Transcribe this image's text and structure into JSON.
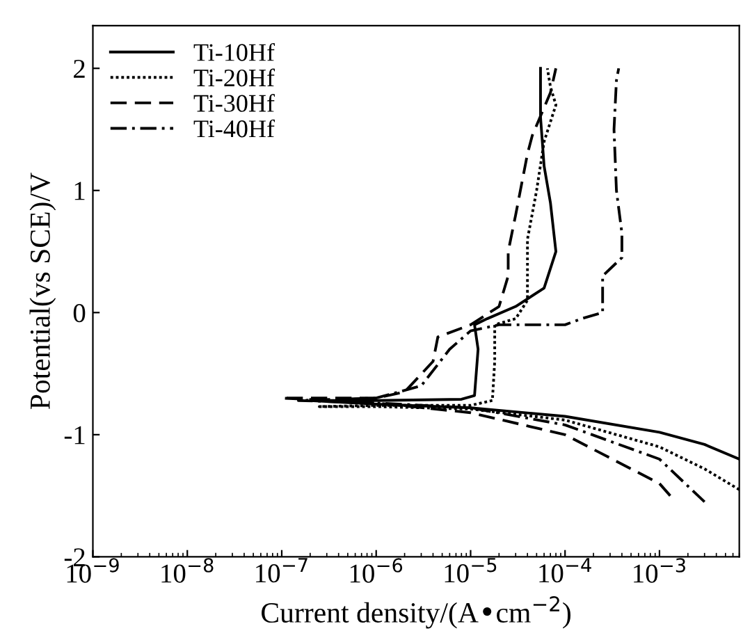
{
  "chart_data": {
    "type": "line",
    "xlabel": "Current density/(A•cm$^{−2}$)",
    "ylabel": "Potential(vs SCE)/V",
    "log": "x",
    "xlim": [
      1e-09,
      0.007
    ],
    "ylim": [
      -2,
      2.35
    ],
    "xticks": [
      {
        "value": 1e-09,
        "label": "10$^{−9}$"
      },
      {
        "value": 1e-08,
        "label": "10$^{−8}$"
      },
      {
        "value": 1e-07,
        "label": "10$^{−7}$"
      },
      {
        "value": 1e-06,
        "label": "10$^{−6}$"
      },
      {
        "value": 1e-05,
        "label": "10$^{−5}$"
      },
      {
        "value": 0.0001,
        "label": "10$^{−4}$"
      },
      {
        "value": 0.001,
        "label": "10$^{−3}$"
      }
    ],
    "yticks": [
      -2,
      -1,
      0,
      1,
      2
    ],
    "grid": false,
    "legend": "top left",
    "marker": "none",
    "series": [
      {
        "name": "Ti-10Hf",
        "color": "#000000",
        "line_style": "solid",
        "x": [
          0.007,
          0.003,
          0.001,
          0.0001,
          1e-05,
          1e-06,
          2e-07,
          1e-06,
          8e-06,
          1.1e-05,
          1.2e-05,
          1.1e-05,
          1.5e-05,
          3e-05,
          6e-05,
          8e-05,
          7e-05,
          6e-05,
          5.5e-05,
          5.5e-05
        ],
        "values": [
          -1.2,
          -1.08,
          -0.98,
          -0.85,
          -0.78,
          -0.75,
          -0.72,
          -0.72,
          -0.71,
          -0.68,
          -0.3,
          -0.1,
          -0.05,
          0.05,
          0.2,
          0.5,
          0.9,
          1.2,
          1.6,
          2.0
        ]
      },
      {
        "name": "Ti-20Hf",
        "color": "#000000",
        "line_style": "dotted",
        "x": [
          0.007,
          0.003,
          0.001,
          0.0001,
          1e-05,
          1e-06,
          2.5e-07,
          1e-06,
          1e-05,
          1.7e-05,
          1.8e-05,
          1.8e-05,
          3e-05,
          4e-05,
          4e-05,
          4e-05,
          5e-05,
          6e-05,
          8e-05,
          7e-05,
          6.5e-05
        ],
        "values": [
          -1.45,
          -1.28,
          -1.1,
          -0.88,
          -0.79,
          -0.77,
          -0.77,
          -0.76,
          -0.76,
          -0.72,
          -0.4,
          -0.1,
          -0.05,
          0.1,
          0.3,
          0.6,
          1.0,
          1.4,
          1.7,
          1.85,
          2.0
        ]
      },
      {
        "name": "Ti-30Hf",
        "color": "#000000",
        "line_style": "dashed",
        "x": [
          0.0013,
          0.001,
          0.0001,
          1e-05,
          1e-06,
          1e-07,
          1e-06,
          2e-06,
          4e-06,
          4.5e-06,
          1e-05,
          2e-05,
          2.5e-05,
          2.5e-05,
          3e-05,
          4e-05,
          4.5e-05,
          7e-05,
          8e-05
        ],
        "values": [
          -1.5,
          -1.4,
          -1.0,
          -0.82,
          -0.74,
          -0.7,
          -0.7,
          -0.65,
          -0.4,
          -0.2,
          -0.1,
          0.05,
          0.3,
          0.5,
          0.8,
          1.3,
          1.45,
          1.8,
          2.0
        ]
      },
      {
        "name": "Ti-40Hf",
        "color": "#000000",
        "line_style": "dashdot",
        "x": [
          0.003,
          0.001,
          0.0001,
          1e-05,
          1e-06,
          1.5e-07,
          1e-06,
          3e-06,
          6e-06,
          1e-05,
          2e-05,
          0.0001,
          0.00015,
          0.00025,
          0.00025,
          0.0004,
          0.0004,
          0.00035,
          0.00033,
          0.00035,
          0.00037
        ],
        "values": [
          -1.55,
          -1.2,
          -0.92,
          -0.78,
          -0.74,
          -0.72,
          -0.7,
          -0.6,
          -0.3,
          -0.15,
          -0.1,
          -0.1,
          -0.05,
          0.0,
          0.3,
          0.45,
          0.65,
          1.0,
          1.5,
          1.9,
          2.0
        ]
      }
    ]
  }
}
